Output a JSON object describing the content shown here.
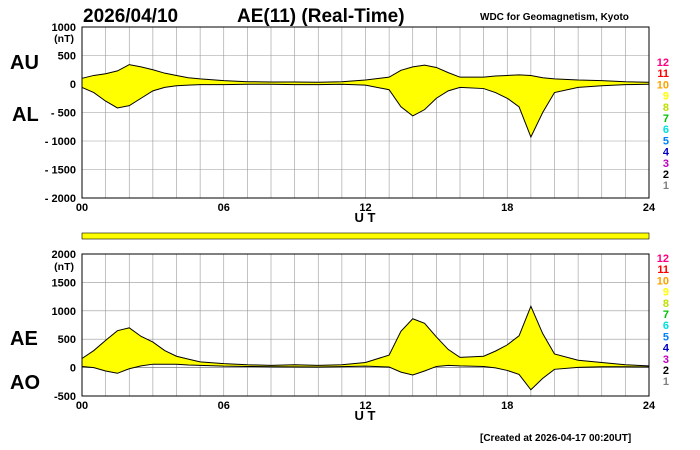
{
  "header": {
    "date": "2026/04/10",
    "title": "AE(11) (Real-Time)",
    "source": "WDC for Geomagnetism, Kyoto"
  },
  "footer": {
    "created": "[Created at 2026-04-17 00:20UT]"
  },
  "colors": {
    "fill": "#ffff00",
    "line": "#000000",
    "grid": "#999999",
    "station_levels": [
      "#c0c0c0",
      "#808080",
      "#000000",
      "#c000c0",
      "#0000c0",
      "#0080ff",
      "#00e0e0",
      "#00c000",
      "#c0e000",
      "#ffff00",
      "#ffa000",
      "#ff0000",
      "#ff0080"
    ]
  },
  "station_legend": [
    "12",
    "11",
    "10",
    "9",
    "8",
    "7",
    "6",
    "5",
    "4",
    "3",
    "2",
    "1"
  ],
  "chart_data": [
    {
      "type": "area",
      "series": [
        {
          "name": "AU",
          "x": [
            0,
            0.5,
            1,
            1.5,
            2,
            2.5,
            3,
            3.5,
            4,
            4.5,
            5,
            6,
            7,
            8,
            9,
            10,
            11,
            12,
            13,
            13.5,
            14,
            14.5,
            15,
            15.5,
            16,
            17,
            17.5,
            18,
            18.5,
            19,
            19.5,
            20,
            21,
            22,
            23,
            24
          ],
          "values": [
            100,
            150,
            180,
            230,
            340,
            300,
            250,
            190,
            150,
            110,
            90,
            60,
            40,
            35,
            35,
            30,
            40,
            70,
            120,
            240,
            300,
            330,
            290,
            200,
            120,
            120,
            140,
            150,
            160,
            150,
            110,
            90,
            70,
            60,
            40,
            30
          ]
        },
        {
          "name": "AL",
          "x": [
            0,
            0.5,
            1,
            1.5,
            2,
            2.5,
            3,
            3.5,
            4,
            4.5,
            5,
            6,
            7,
            8,
            9,
            10,
            11,
            12,
            13,
            13.5,
            14,
            14.5,
            15,
            15.5,
            16,
            17,
            17.5,
            18,
            18.5,
            19,
            19.5,
            20,
            21,
            22,
            23,
            24
          ],
          "values": [
            -60,
            -150,
            -300,
            -420,
            -380,
            -250,
            -120,
            -60,
            -30,
            -20,
            -10,
            -10,
            -5,
            -5,
            -10,
            -10,
            -5,
            -20,
            -100,
            -400,
            -560,
            -450,
            -250,
            -120,
            -60,
            -80,
            -150,
            -250,
            -400,
            -930,
            -500,
            -150,
            -60,
            -30,
            -10,
            -5
          ]
        }
      ],
      "ylabel": "(nT)",
      "side_labels": [
        "AU",
        "AL"
      ],
      "xlabel": "U T",
      "xlim": [
        0,
        24
      ],
      "ylim": [
        -2000,
        1000
      ],
      "xticks": [
        "00",
        "06",
        "12",
        "18",
        "24"
      ],
      "yticks": [
        "1000",
        "500",
        "0",
        "- 500",
        "- 1000",
        "- 1500",
        "- 2000"
      ],
      "grid": true
    },
    {
      "type": "area",
      "series": [
        {
          "name": "AE",
          "x": [
            0,
            0.5,
            1,
            1.5,
            2,
            2.5,
            3,
            3.5,
            4,
            4.5,
            5,
            6,
            7,
            8,
            9,
            10,
            11,
            12,
            13,
            13.5,
            14,
            14.5,
            15,
            15.5,
            16,
            17,
            17.5,
            18,
            18.5,
            19,
            19.5,
            20,
            21,
            22,
            23,
            24
          ],
          "values": [
            160,
            300,
            480,
            650,
            700,
            550,
            450,
            300,
            200,
            150,
            100,
            70,
            50,
            40,
            50,
            40,
            50,
            90,
            220,
            640,
            860,
            780,
            540,
            320,
            180,
            200,
            290,
            400,
            560,
            1080,
            600,
            240,
            130,
            90,
            50,
            30
          ]
        },
        {
          "name": "AO",
          "x": [
            0,
            0.5,
            1,
            1.5,
            2,
            2.5,
            3,
            3.5,
            4,
            4.5,
            5,
            6,
            7,
            8,
            9,
            10,
            11,
            12,
            13,
            13.5,
            14,
            14.5,
            15,
            15.5,
            16,
            17,
            17.5,
            18,
            18.5,
            19,
            19.5,
            20,
            21,
            22,
            23,
            24
          ],
          "values": [
            20,
            0,
            -60,
            -100,
            -20,
            30,
            60,
            60,
            60,
            45,
            40,
            25,
            20,
            15,
            12,
            10,
            17,
            25,
            10,
            -80,
            -130,
            -60,
            20,
            40,
            30,
            20,
            -5,
            -50,
            -120,
            -390,
            -190,
            -30,
            5,
            15,
            15,
            12
          ]
        }
      ],
      "ylabel": "(nT)",
      "side_labels": [
        "AE",
        "AO"
      ],
      "xlabel": "U T",
      "xlim": [
        0,
        24
      ],
      "ylim": [
        -500,
        2000
      ],
      "xticks": [
        "00",
        "06",
        "12",
        "18",
        "24"
      ],
      "yticks": [
        "2000",
        "1500",
        "1000",
        "500",
        "0",
        "-500"
      ],
      "grid": true
    }
  ]
}
